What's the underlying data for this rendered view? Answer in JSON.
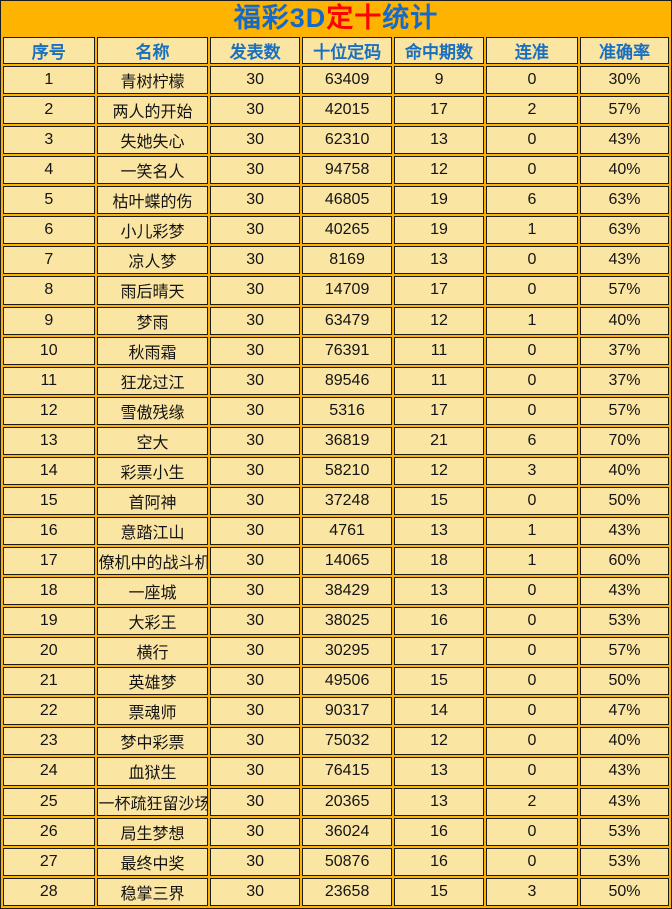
{
  "title": {
    "part_blue_1": "福彩3D",
    "part_red": "定十",
    "part_blue_2": "统计"
  },
  "colors": {
    "page_background": "#FFB301",
    "cell_background": "#FBE5A2",
    "border": "#1c1c1c",
    "header_text": "#1A6FC0",
    "title_blue": "#1669C9",
    "title_red": "#FE0000",
    "body_text": "#141414"
  },
  "chart_data": {
    "type": "table",
    "title": "福彩3D定十统计",
    "columns": [
      "序号",
      "名称",
      "发表数",
      "十位定码",
      "命中期数",
      "连准",
      "准确率"
    ],
    "rows": [
      [
        "1",
        "青树柠檬",
        "30",
        "63409",
        "9",
        "0",
        "30%"
      ],
      [
        "2",
        "两人的开始",
        "30",
        "42015",
        "17",
        "2",
        "57%"
      ],
      [
        "3",
        "失她失心",
        "30",
        "62310",
        "13",
        "0",
        "43%"
      ],
      [
        "4",
        "一笑名人",
        "30",
        "94758",
        "12",
        "0",
        "40%"
      ],
      [
        "5",
        "枯叶蝶的伤",
        "30",
        "46805",
        "19",
        "6",
        "63%"
      ],
      [
        "6",
        "小儿彩梦",
        "30",
        "40265",
        "19",
        "1",
        "63%"
      ],
      [
        "7",
        "凉人梦",
        "30",
        "8169",
        "13",
        "0",
        "43%"
      ],
      [
        "8",
        "雨后晴天",
        "30",
        "14709",
        "17",
        "0",
        "57%"
      ],
      [
        "9",
        "梦雨",
        "30",
        "63479",
        "12",
        "1",
        "40%"
      ],
      [
        "10",
        "秋雨霜",
        "30",
        "76391",
        "11",
        "0",
        "37%"
      ],
      [
        "11",
        "狂龙过江",
        "30",
        "89546",
        "11",
        "0",
        "37%"
      ],
      [
        "12",
        "雪傲残缘",
        "30",
        "5316",
        "17",
        "0",
        "57%"
      ],
      [
        "13",
        "空大",
        "30",
        "36819",
        "21",
        "6",
        "70%"
      ],
      [
        "14",
        "彩票小生",
        "30",
        "58210",
        "12",
        "3",
        "40%"
      ],
      [
        "15",
        "首阿神",
        "30",
        "37248",
        "15",
        "0",
        "50%"
      ],
      [
        "16",
        "意踏江山",
        "30",
        "4761",
        "13",
        "1",
        "43%"
      ],
      [
        "17",
        "僚机中的战斗机",
        "30",
        "14065",
        "18",
        "1",
        "60%"
      ],
      [
        "18",
        "一座城",
        "30",
        "38429",
        "13",
        "0",
        "43%"
      ],
      [
        "19",
        "大彩王",
        "30",
        "38025",
        "16",
        "0",
        "53%"
      ],
      [
        "20",
        "横行",
        "30",
        "30295",
        "17",
        "0",
        "57%"
      ],
      [
        "21",
        "英雄梦",
        "30",
        "49506",
        "15",
        "0",
        "50%"
      ],
      [
        "22",
        "票魂师",
        "30",
        "90317",
        "14",
        "0",
        "47%"
      ],
      [
        "23",
        "梦中彩票",
        "30",
        "75032",
        "12",
        "0",
        "40%"
      ],
      [
        "24",
        "血狱生",
        "30",
        "76415",
        "13",
        "0",
        "43%"
      ],
      [
        "25",
        "一杯疏狂留沙场",
        "30",
        "20365",
        "13",
        "2",
        "43%"
      ],
      [
        "26",
        "局生梦想",
        "30",
        "36024",
        "16",
        "0",
        "53%"
      ],
      [
        "27",
        "最终中奖",
        "30",
        "50876",
        "16",
        "0",
        "53%"
      ],
      [
        "28",
        "稳掌三界",
        "30",
        "23658",
        "15",
        "3",
        "50%"
      ]
    ]
  }
}
